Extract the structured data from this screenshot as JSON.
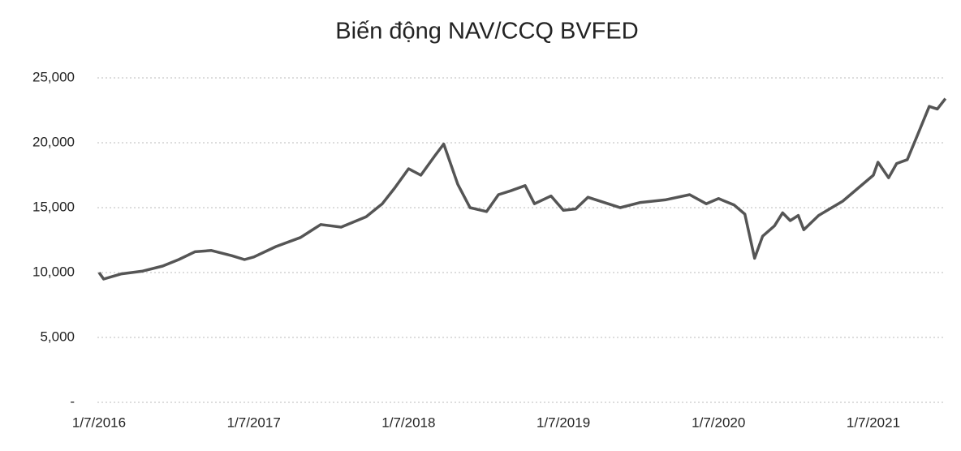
{
  "chart_data": {
    "type": "line",
    "title": "Biến động NAV/CCQ BVFED",
    "x": [
      "1/7/2016",
      "12/7/2016",
      "23/8/2016",
      "10/10/2016",
      "28/11/2016",
      "5/1/2017",
      "12/2/2017",
      "23/3/2017",
      "10/5/2017",
      "9/6/2017",
      "1/7/2017",
      "22/8/2017",
      "19/10/2017",
      "6/12/2017",
      "23/1/2018",
      "23/3/2018",
      "30/4/2018",
      "29/5/2018",
      "1/7/2018",
      "30/7/2018",
      "1/9/2018",
      "22/9/2018",
      "25/10/2018",
      "23/11/2018",
      "1/1/2019",
      "29/1/2019",
      "27/2/2019",
      "2/4/2019",
      "24/4/2019",
      "2/6/2019",
      "1/7/2019",
      "30/7/2019",
      "28/8/2019",
      "5/10/2019",
      "12/11/2019",
      "30/12/2019",
      "26/2/2020",
      "24/4/2020",
      "2/6/2020",
      "1/7/2020",
      "7/8/2020",
      "1/9/2020",
      "24/9/2020",
      "13/10/2020",
      "10/11/2020",
      "29/11/2020",
      "17/12/2020",
      "5/1/2021",
      "18/1/2021",
      "22/2/2021",
      "20/4/2021",
      "1/7/2021",
      "12/7/2021",
      "6/8/2021",
      "25/8/2021",
      "19/9/2021",
      "12/10/2021",
      "10/11/2021",
      "29/11/2021",
      "18/12/2021"
    ],
    "series": [
      {
        "color": "#555555",
        "values": [
          10000,
          9500,
          9900,
          10100,
          10500,
          11000,
          11600,
          11700,
          11300,
          11000,
          11200,
          12000,
          12700,
          13700,
          13500,
          14300,
          15300,
          16500,
          18000,
          17500,
          19000,
          19900,
          16800,
          15000,
          14700,
          16000,
          16300,
          16700,
          15300,
          15900,
          14800,
          14900,
          15800,
          15400,
          15000,
          15400,
          15600,
          16000,
          15300,
          15700,
          15200,
          14500,
          11100,
          12800,
          13600,
          14600,
          14000,
          14400,
          13300,
          14400,
          15500,
          17500,
          18500,
          17300,
          18400,
          18700,
          20500,
          22800,
          22600,
          23400
        ]
      }
    ],
    "xlim": [
      "1/7/2016",
      "28/12/2021"
    ],
    "xticks": [
      "1/7/2016",
      "1/7/2017",
      "1/7/2018",
      "1/7/2019",
      "1/7/2020",
      "1/7/2021"
    ],
    "ylim": [
      0,
      25000
    ],
    "yticks": [
      {
        "value": 0,
        "label": "-"
      },
      {
        "value": 5000,
        "label": "5,000"
      },
      {
        "value": 10000,
        "label": "10,000"
      },
      {
        "value": 15000,
        "label": "15,000"
      },
      {
        "value": 20000,
        "label": "20,000"
      },
      {
        "value": 25000,
        "label": "25,000"
      }
    ],
    "grid": true
  }
}
